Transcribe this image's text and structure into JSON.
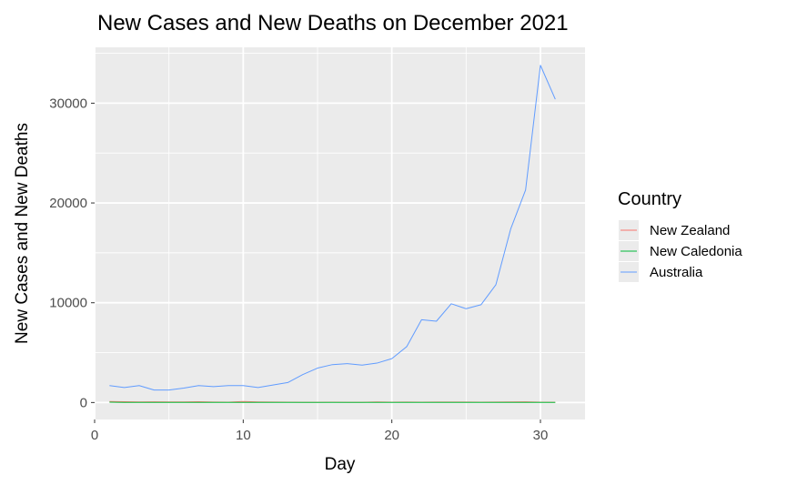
{
  "chart_data": {
    "type": "line",
    "title": "New Cases and New Deaths on December 2021",
    "xlabel": "Day",
    "ylabel": "New Cases and New Deaths",
    "xlim": [
      0,
      33
    ],
    "ylim": [
      -1700,
      35600
    ],
    "x_ticks": [
      0,
      10,
      20,
      30
    ],
    "y_ticks": [
      0,
      10000,
      20000,
      30000
    ],
    "grid": true,
    "legend": {
      "title": "Country",
      "placement": "right"
    },
    "series": [
      {
        "name": "New Zealand",
        "color": "#F8766D",
        "x": [
          1,
          2,
          3,
          4,
          5,
          6,
          7,
          8,
          9,
          10,
          11,
          12,
          13,
          14,
          15,
          16,
          17,
          18,
          19,
          20,
          21,
          22,
          23,
          24,
          25,
          26,
          27,
          28,
          29,
          30,
          31
        ],
        "y": [
          100,
          80,
          60,
          70,
          50,
          60,
          80,
          40,
          30,
          100,
          60,
          40,
          30,
          20,
          20,
          30,
          20,
          20,
          60,
          30,
          40,
          30,
          40,
          40,
          40,
          30,
          40,
          60,
          70,
          30,
          20
        ]
      },
      {
        "name": "New Caledonia",
        "color": "#00BA38",
        "x": [
          1,
          2,
          3,
          4,
          5,
          6,
          7,
          8,
          9,
          10,
          11,
          12,
          13,
          14,
          15,
          16,
          17,
          18,
          19,
          20,
          21,
          22,
          23,
          24,
          25,
          26,
          27,
          28,
          29,
          30,
          31
        ],
        "y": [
          30,
          10,
          10,
          10,
          10,
          10,
          10,
          10,
          10,
          10,
          10,
          10,
          10,
          10,
          10,
          10,
          10,
          10,
          10,
          10,
          10,
          10,
          10,
          10,
          10,
          10,
          10,
          10,
          10,
          10,
          10
        ]
      },
      {
        "name": "Australia",
        "color": "#619CFF",
        "x": [
          1,
          2,
          3,
          4,
          5,
          6,
          7,
          8,
          9,
          10,
          11,
          12,
          13,
          14,
          15,
          16,
          17,
          18,
          19,
          20,
          21,
          22,
          23,
          24,
          25,
          26,
          27,
          28,
          29,
          30,
          31
        ],
        "y": [
          1700,
          1500,
          1700,
          1250,
          1250,
          1450,
          1700,
          1600,
          1700,
          1700,
          1500,
          1750,
          2000,
          2800,
          3450,
          3800,
          3900,
          3750,
          3950,
          4400,
          5600,
          8300,
          8150,
          9900,
          9400,
          9800,
          11800,
          17400,
          21300,
          33800,
          30400
        ]
      }
    ]
  }
}
